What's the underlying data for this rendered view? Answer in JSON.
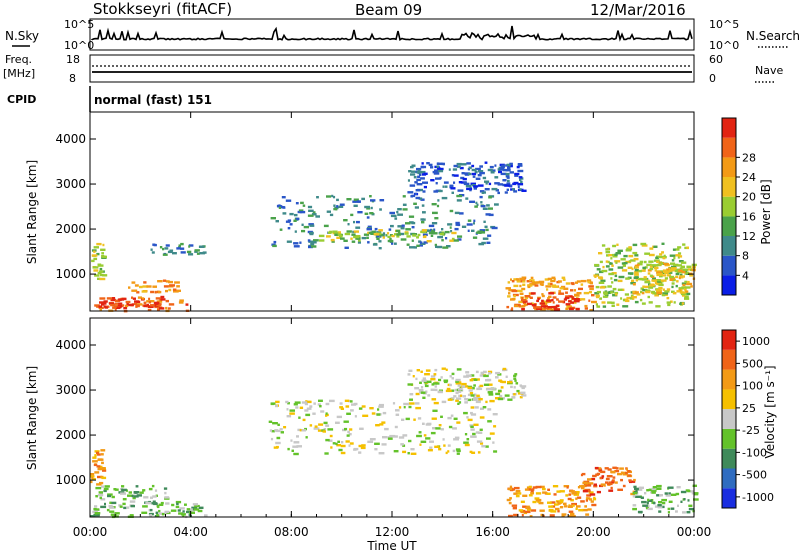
{
  "header": {
    "station": "Stokkseyri (fitACF)",
    "beam": "Beam 09",
    "date": "12/Mar/2016"
  },
  "strip_labels": {
    "nsky": "N.Sky",
    "nsky_ticks": [
      "10^5",
      "10^0"
    ],
    "nsearch": "N.Search",
    "nsearch_ticks": [
      "10^5",
      "10^0"
    ],
    "freq": "Freq.",
    "freq_unit": "[MHz]",
    "freq_ticks": [
      "18",
      "8"
    ],
    "nave": "Nave",
    "nave_ticks": [
      "60",
      "0"
    ],
    "cpid": "CPID",
    "cpid_value": "normal (fast) 151"
  },
  "chart_data": [
    {
      "type": "heatmap",
      "id": "power-panel",
      "ylabel": "Slant Range [km]",
      "xlabel": "",
      "y_ticks": [
        1000,
        2000,
        3000,
        4000
      ],
      "ylim": [
        180,
        4600
      ],
      "xlim": [
        0,
        24
      ],
      "colorbar": {
        "label": "Power [dB]",
        "ticks": [
          "4",
          "8",
          "12",
          "16",
          "20",
          "24",
          "28"
        ],
        "colors": [
          "#0a1ee6",
          "#2a56c8",
          "#3f8a8a",
          "#4aa24a",
          "#9acd32",
          "#f0c020",
          "#f39a16",
          "#f06418",
          "#e22412"
        ]
      },
      "regions": [
        {
          "t0": 0.0,
          "t1": 3.9,
          "r0": 200,
          "r1": 520,
          "level": 7
        },
        {
          "t0": 0.3,
          "t1": 2.6,
          "r0": 260,
          "r1": 420,
          "level": 8
        },
        {
          "t0": 1.5,
          "t1": 3.5,
          "r0": 620,
          "r1": 900,
          "level": 6
        },
        {
          "t0": 0.0,
          "t1": 0.5,
          "r0": 900,
          "r1": 1700,
          "level": 4
        },
        {
          "t0": 2.4,
          "t1": 4.6,
          "r0": 1450,
          "r1": 1700,
          "level": 2
        },
        {
          "t0": 7.1,
          "t1": 16.1,
          "r0": 1600,
          "r1": 2800,
          "level": 2
        },
        {
          "t0": 9.0,
          "t1": 14.5,
          "r0": 1750,
          "r1": 2000,
          "level": 4
        },
        {
          "t0": 12.6,
          "t1": 17.2,
          "r0": 2800,
          "r1": 3500,
          "level": 1
        },
        {
          "t0": 16.5,
          "t1": 20.0,
          "r0": 220,
          "r1": 950,
          "level": 6
        },
        {
          "t0": 17.0,
          "t1": 19.3,
          "r0": 230,
          "r1": 600,
          "level": 8
        },
        {
          "t0": 20.0,
          "t1": 23.7,
          "r0": 300,
          "r1": 1700,
          "level": 4
        },
        {
          "t0": 21.5,
          "t1": 24.0,
          "r0": 600,
          "r1": 1300,
          "level": 5
        }
      ]
    },
    {
      "type": "heatmap",
      "id": "velocity-panel",
      "ylabel": "Slant Range [km]",
      "xlabel": "Time UT",
      "x_ticks": [
        "00:00",
        "04:00",
        "08:00",
        "12:00",
        "16:00",
        "20:00",
        "00:00"
      ],
      "y_ticks": [
        1000,
        2000,
        3000,
        4000
      ],
      "ylim": [
        180,
        4600
      ],
      "xlim": [
        0,
        24
      ],
      "colorbar": {
        "label": "Velocity [m s⁻¹]",
        "ticks": [
          "1000",
          "500",
          "100",
          "25",
          "-25",
          "-100",
          "-500",
          "-1000"
        ],
        "colors": [
          "#1a2ee0",
          "#2f6cc0",
          "#3f8a5a",
          "#63c22a",
          "#c8c8c8",
          "#f5c000",
          "#f39a16",
          "#f06418",
          "#e22412"
        ]
      },
      "regions": [
        {
          "t0": 0.0,
          "t1": 4.6,
          "r0": 200,
          "r1": 550,
          "level": 3
        },
        {
          "t0": 0.2,
          "t1": 3.0,
          "r0": 600,
          "r1": 900,
          "level": 3
        },
        {
          "t0": 0.0,
          "t1": 0.5,
          "r0": 900,
          "r1": 1700,
          "level": 6
        },
        {
          "t0": 7.1,
          "t1": 16.1,
          "r0": 1600,
          "r1": 2800,
          "level": 4
        },
        {
          "t0": 12.6,
          "t1": 17.2,
          "r0": 2800,
          "r1": 3500,
          "level": 4
        },
        {
          "t0": 16.5,
          "t1": 20.0,
          "r0": 220,
          "r1": 900,
          "level": 6
        },
        {
          "t0": 19.5,
          "t1": 21.6,
          "r0": 700,
          "r1": 1300,
          "level": 7
        },
        {
          "t0": 21.5,
          "t1": 24.0,
          "r0": 300,
          "r1": 900,
          "level": 3
        }
      ]
    }
  ]
}
